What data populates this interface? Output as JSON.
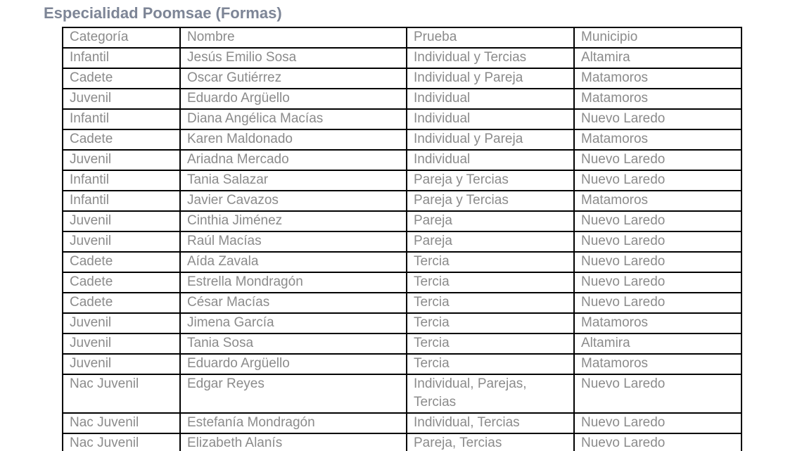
{
  "page": {
    "title": "Especialidad Poomsae (Formas)"
  },
  "colors": {
    "title": "#7d8596",
    "cell_text": "#8b8b8b",
    "border": "#000000",
    "background": "#ffffff"
  },
  "table": {
    "headers": [
      "Categoría",
      "Nombre",
      "Prueba",
      "Municipio"
    ],
    "rows": [
      [
        "Infantil",
        "Jesús Emilio Sosa",
        "Individual y Tercias",
        "Altamira"
      ],
      [
        "Cadete",
        "Oscar Gutiérrez",
        "Individual y Pareja",
        "Matamoros"
      ],
      [
        "Juvenil",
        "Eduardo Argüello",
        "Individual",
        "Matamoros"
      ],
      [
        "Infantil",
        "Diana Angélica Macías",
        "Individual",
        "Nuevo Laredo"
      ],
      [
        "Cadete",
        "Karen Maldonado",
        "Individual y Pareja",
        "Matamoros"
      ],
      [
        "Juvenil",
        "Ariadna Mercado",
        "Individual",
        "Nuevo Laredo"
      ],
      [
        "Infantil",
        "Tania Salazar",
        "Pareja y Tercias",
        "Nuevo Laredo"
      ],
      [
        "Infantil",
        "Javier Cavazos",
        "Pareja y Tercias",
        "Matamoros"
      ],
      [
        "Juvenil",
        "Cinthia Jiménez",
        "Pareja",
        "Nuevo Laredo"
      ],
      [
        "Juvenil",
        "Raúl Macías",
        "Pareja",
        "Nuevo Laredo"
      ],
      [
        "Cadete",
        "Aída Zavala",
        "Tercia",
        "Nuevo Laredo"
      ],
      [
        "Cadete",
        "Estrella Mondragón",
        "Tercia",
        "Nuevo Laredo"
      ],
      [
        "Cadete",
        "César Macías",
        "Tercia",
        "Nuevo Laredo"
      ],
      [
        "Juvenil",
        "Jimena García",
        "Tercia",
        "Matamoros"
      ],
      [
        "Juvenil",
        "Tania Sosa",
        "Tercia",
        "Altamira"
      ],
      [
        "Juvenil",
        "Eduardo Argüello",
        "Tercia",
        "Matamoros"
      ],
      [
        "Nac Juvenil",
        "Edgar Reyes",
        "Individual, Parejas, Tercias",
        "Nuevo Laredo"
      ],
      [
        "Nac Juvenil",
        "Estefanía Mondragón",
        "Individual, Tercias",
        "Nuevo Laredo"
      ],
      [
        "Nac Juvenil",
        "Elizabeth Alanís",
        "Pareja, Tercias",
        "Nuevo Laredo"
      ]
    ]
  }
}
